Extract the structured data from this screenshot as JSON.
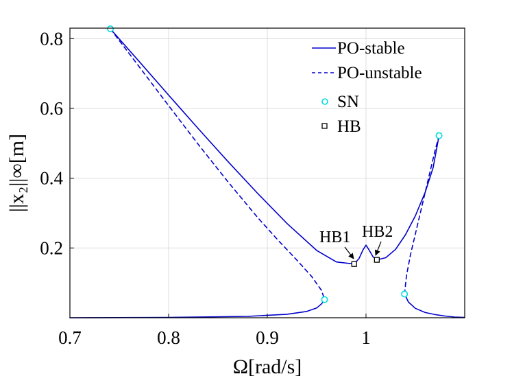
{
  "chart_data": {
    "type": "line",
    "xlabel": "Ω[rad/s]",
    "ylabel": "||x₂||∞[m]",
    "xlim": [
      0.7,
      1.1
    ],
    "ylim": [
      0.0,
      0.83
    ],
    "xticks": [
      0.7,
      0.8,
      0.9,
      1.0
    ],
    "xtick_labels": [
      "0.7",
      "0.8",
      "0.9",
      "1"
    ],
    "yticks": [
      0.2,
      0.4,
      0.6,
      0.8
    ],
    "ytick_labels": [
      "0.2",
      "0.4",
      "0.6",
      "0.8"
    ],
    "grid": true,
    "legend_position": "top-right",
    "legend": [
      {
        "label": "PO-stable",
        "style": "solid-line"
      },
      {
        "label": "PO-unstable",
        "style": "dashed-line"
      },
      {
        "label": "SN",
        "style": "cyan-circle"
      },
      {
        "label": "HB",
        "style": "black-square"
      }
    ],
    "colors": {
      "curve": "#0000cc",
      "sn": "#00dddd",
      "hb": "#000000",
      "grid": "#dcdcdc"
    },
    "series": [
      {
        "name": "PO-stable (left branch)",
        "style": "solid",
        "x": [
          0.741,
          0.77,
          0.8,
          0.83,
          0.86,
          0.89,
          0.92,
          0.95,
          0.97,
          0.988
        ],
        "y": [
          0.828,
          0.735,
          0.638,
          0.542,
          0.448,
          0.357,
          0.27,
          0.193,
          0.16,
          0.154
        ]
      },
      {
        "name": "PO-stable (central peak)",
        "style": "solid",
        "x": [
          0.988,
          0.993,
          0.997,
          1.0,
          1.003,
          1.007,
          1.011
        ],
        "y": [
          0.154,
          0.17,
          0.195,
          0.208,
          0.195,
          0.175,
          0.166
        ]
      },
      {
        "name": "PO-stable (right branch)",
        "style": "solid",
        "x": [
          1.011,
          1.02,
          1.03,
          1.04,
          1.05,
          1.06,
          1.068,
          1.074
        ],
        "y": [
          0.166,
          0.172,
          0.196,
          0.238,
          0.292,
          0.36,
          0.43,
          0.522
        ]
      },
      {
        "name": "PO-stable (lower left branch)",
        "style": "solid",
        "x": [
          0.7,
          0.8,
          0.88,
          0.92,
          0.94,
          0.95,
          0.955,
          0.958
        ],
        "y": [
          0.0,
          0.001,
          0.004,
          0.01,
          0.018,
          0.028,
          0.04,
          0.052
        ]
      },
      {
        "name": "PO-stable (lower right branch)",
        "style": "solid",
        "x": [
          1.039,
          1.043,
          1.05,
          1.06,
          1.07,
          1.08,
          1.09,
          1.1
        ],
        "y": [
          0.068,
          0.045,
          0.027,
          0.015,
          0.009,
          0.005,
          0.002,
          0.001
        ]
      },
      {
        "name": "PO-unstable (left)",
        "style": "dashed",
        "x": [
          0.741,
          0.77,
          0.8,
          0.83,
          0.86,
          0.89,
          0.91,
          0.93,
          0.945,
          0.955,
          0.958
        ],
        "y": [
          0.828,
          0.72,
          0.608,
          0.497,
          0.39,
          0.288,
          0.225,
          0.165,
          0.118,
          0.078,
          0.052
        ]
      },
      {
        "name": "PO-unstable (right)",
        "style": "dashed",
        "x": [
          1.039,
          1.041,
          1.045,
          1.05,
          1.055,
          1.06,
          1.065,
          1.07,
          1.074
        ],
        "y": [
          0.068,
          0.12,
          0.18,
          0.24,
          0.3,
          0.36,
          0.42,
          0.48,
          0.522
        ]
      }
    ],
    "sn_points": [
      {
        "x": 0.741,
        "y": 0.828
      },
      {
        "x": 0.958,
        "y": 0.052
      },
      {
        "x": 1.039,
        "y": 0.068
      },
      {
        "x": 1.074,
        "y": 0.522
      }
    ],
    "hb_points": [
      {
        "x": 0.988,
        "y": 0.154
      },
      {
        "x": 1.011,
        "y": 0.166
      }
    ],
    "annotations": [
      {
        "text": "HB1",
        "x": 0.988,
        "y": 0.154
      },
      {
        "text": "HB2",
        "x": 1.011,
        "y": 0.166
      }
    ]
  }
}
